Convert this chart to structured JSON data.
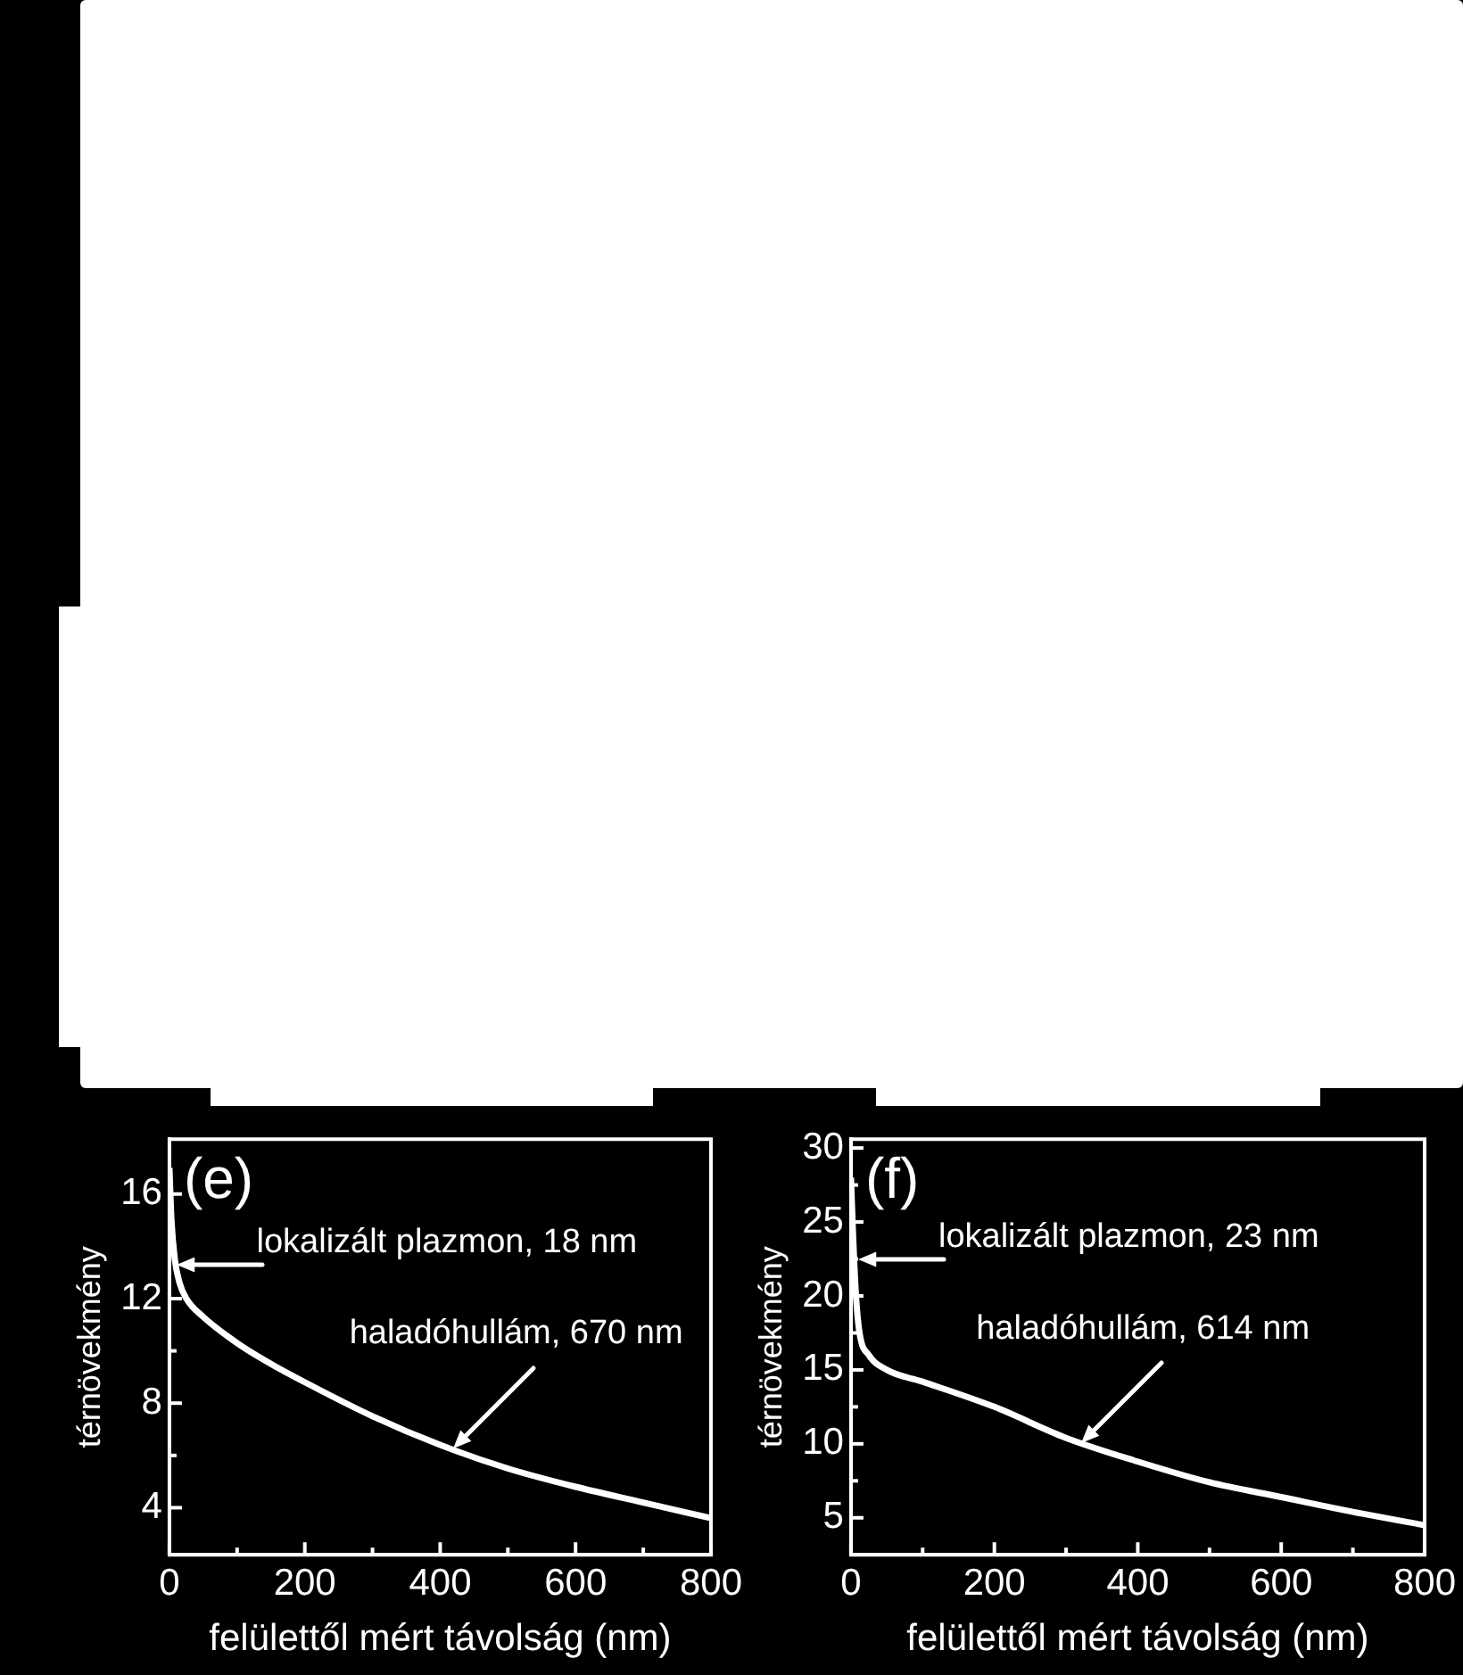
{
  "chart_data": [
    {
      "type": "line",
      "xlabel": "felülettől mért távolság (nm)",
      "ylabel": "térnövekmény",
      "xlim": [
        0,
        800
      ],
      "ylim": [
        2.2,
        18.1
      ],
      "xticks": [
        0,
        {
          "value": 100,
          "label": null
        },
        200,
        {
          "value": 300,
          "label": null
        },
        400,
        {
          "value": 500,
          "label": null
        },
        600,
        {
          "value": 700,
          "label": null
        },
        800
      ],
      "yticks": [
        4,
        {
          "value": 6,
          "label": null
        },
        8,
        {
          "value": 10,
          "label": null
        },
        12,
        {
          "value": 14,
          "label": null
        },
        16
      ],
      "grid": false,
      "marker": "none",
      "line_style": "solid",
      "series": [
        {
          "color": "#ffffff",
          "x": [
            0,
            3,
            8,
            15,
            25,
            50,
            100,
            150,
            200,
            300,
            400,
            500,
            600,
            700,
            800
          ],
          "values": [
            17,
            15,
            13.5,
            12.6,
            12.0,
            11.3,
            10.3,
            9.5,
            8.8,
            7.5,
            6.4,
            5.5,
            4.8,
            4.2,
            3.6
          ]
        }
      ],
      "annotations": [
        "(e)",
        {
          "text": "lokalizált plazmon, 18 nm",
          "x": 10,
          "y": 13.3
        },
        {
          "text": "haladóhullám, 670 nm",
          "x": 420,
          "y": 6.3
        }
      ]
    },
    {
      "type": "line",
      "xlabel": "felülettől mért távolság (nm)",
      "ylabel": "térnövekmény",
      "xlim": [
        0,
        800
      ],
      "ylim": [
        2.5,
        30.6
      ],
      "xticks": [
        0,
        {
          "value": 100,
          "label": null
        },
        200,
        {
          "value": 300,
          "label": null
        },
        400,
        {
          "value": 500,
          "label": null
        },
        600,
        {
          "value": 700,
          "label": null
        },
        800
      ],
      "yticks": [
        5,
        {
          "value": 7.5,
          "label": null
        },
        10,
        {
          "value": 12.5,
          "label": null
        },
        15,
        {
          "value": 17.5,
          "label": null
        },
        20,
        {
          "value": 22.5,
          "label": null
        },
        25,
        {
          "value": 27.5,
          "label": null
        },
        30
      ],
      "grid": false,
      "marker": "none",
      "line_style": "solid",
      "series": [
        {
          "color": "#ffffff",
          "x": [
            0,
            3,
            7,
            12,
            25,
            50,
            100,
            200,
            300,
            400,
            500,
            600,
            700,
            800
          ],
          "values": [
            28,
            24,
            20,
            17.5,
            16,
            15,
            14.2,
            12.5,
            10.4,
            8.8,
            7.4,
            6.4,
            5.4,
            4.5
          ]
        }
      ],
      "annotations": [
        "(f)",
        {
          "text": "lokalizált plazmon, 23 nm",
          "x": 10,
          "y": 22.5
        },
        {
          "text": "haladóhullám, 614 nm",
          "x": 320,
          "y": 10
        }
      ]
    }
  ]
}
